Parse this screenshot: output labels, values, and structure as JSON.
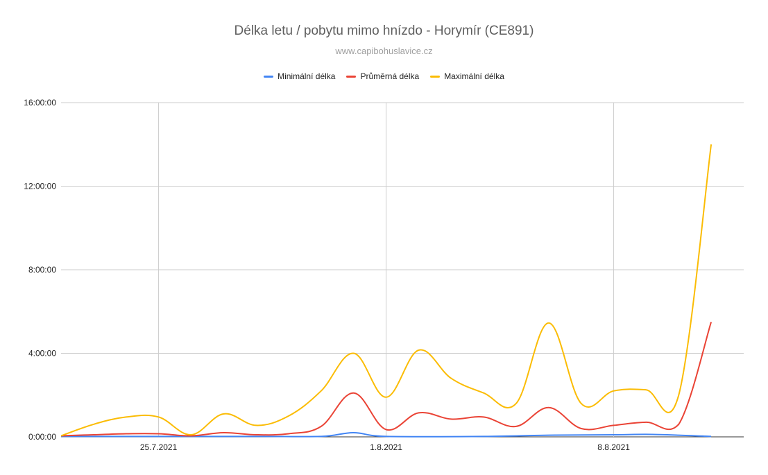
{
  "chart_data": {
    "type": "line",
    "title": "Délka letu / pobytu mimo hnízdo - Horymír (CE891)",
    "subtitle": "www.capibohuslavice.cz",
    "xlabel": "",
    "ylabel": "",
    "y_unit": "hours",
    "ylim": [
      0,
      16
    ],
    "y_ticks": [
      0,
      4,
      8,
      12,
      16
    ],
    "y_tick_labels": [
      "0:00:00",
      "4:00:00",
      "8:00:00",
      "12:00:00",
      "16:00:00"
    ],
    "x_start": "2021-07-22",
    "x_end": "2021-08-12",
    "x_ticks": [
      "2021-07-25",
      "2021-08-01",
      "2021-08-08"
    ],
    "x_tick_labels": [
      "25.7.2021",
      "1.8.2021",
      "8.8.2021"
    ],
    "legend_position": "top",
    "grid": true,
    "series": [
      {
        "name": "Minimální délka",
        "color": "#4285f4",
        "points": [
          [
            "2021-07-22",
            0.02
          ],
          [
            "2021-07-25",
            0.02
          ],
          [
            "2021-07-28",
            0.02
          ],
          [
            "2021-07-30",
            0.02
          ],
          [
            "2021-07-31",
            0.2
          ],
          [
            "2021-08-01",
            0.02
          ],
          [
            "2021-08-04",
            0.02
          ],
          [
            "2021-08-06",
            0.08
          ],
          [
            "2021-08-08",
            0.1
          ],
          [
            "2021-08-09",
            0.12
          ],
          [
            "2021-08-10",
            0.08
          ],
          [
            "2021-08-11",
            0.02
          ]
        ]
      },
      {
        "name": "Průměrná délka",
        "color": "#ea4335",
        "points": [
          [
            "2021-07-22",
            0.05
          ],
          [
            "2021-07-23",
            0.1
          ],
          [
            "2021-07-24",
            0.15
          ],
          [
            "2021-07-25",
            0.15
          ],
          [
            "2021-07-26",
            0.05
          ],
          [
            "2021-07-27",
            0.2
          ],
          [
            "2021-07-28",
            0.1
          ],
          [
            "2021-07-29",
            0.15
          ],
          [
            "2021-07-30",
            0.5
          ],
          [
            "2021-07-31",
            2.1
          ],
          [
            "2021-08-01",
            0.35
          ],
          [
            "2021-08-02",
            1.15
          ],
          [
            "2021-08-03",
            0.85
          ],
          [
            "2021-08-04",
            0.95
          ],
          [
            "2021-08-05",
            0.5
          ],
          [
            "2021-08-06",
            1.4
          ],
          [
            "2021-08-07",
            0.4
          ],
          [
            "2021-08-08",
            0.55
          ],
          [
            "2021-08-09",
            0.7
          ],
          [
            "2021-08-10",
            0.6
          ],
          [
            "2021-08-11",
            5.5
          ]
        ]
      },
      {
        "name": "Maximální délka",
        "color": "#fbbc04",
        "points": [
          [
            "2021-07-22",
            0.05
          ],
          [
            "2021-07-23",
            0.6
          ],
          [
            "2021-07-24",
            0.95
          ],
          [
            "2021-07-25",
            0.95
          ],
          [
            "2021-07-26",
            0.1
          ],
          [
            "2021-07-27",
            1.1
          ],
          [
            "2021-07-28",
            0.55
          ],
          [
            "2021-07-29",
            1.0
          ],
          [
            "2021-07-30",
            2.2
          ],
          [
            "2021-07-31",
            4.0
          ],
          [
            "2021-08-01",
            1.9
          ],
          [
            "2021-08-02",
            4.15
          ],
          [
            "2021-08-03",
            2.8
          ],
          [
            "2021-08-04",
            2.1
          ],
          [
            "2021-08-05",
            1.6
          ],
          [
            "2021-08-06",
            5.45
          ],
          [
            "2021-08-07",
            1.6
          ],
          [
            "2021-08-08",
            2.2
          ],
          [
            "2021-08-09",
            2.25
          ],
          [
            "2021-08-10",
            2.0
          ],
          [
            "2021-08-11",
            14.0
          ]
        ]
      }
    ]
  }
}
